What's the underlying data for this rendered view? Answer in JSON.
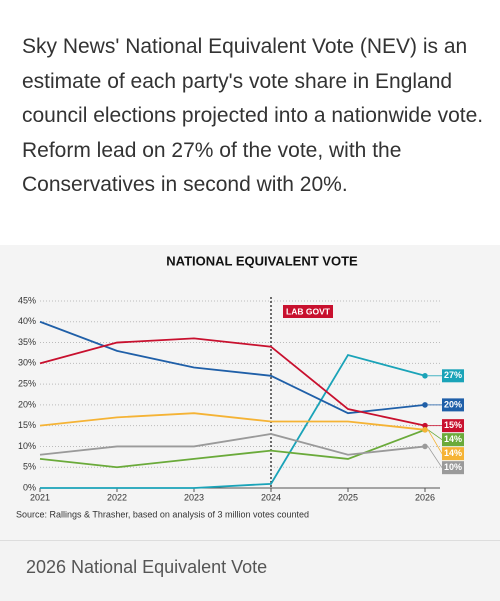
{
  "intro": "Sky News' National Equivalent Vote (NEV) is an estimate of each party's vote share in England council elections projected into a nationwide vote. Reform lead on 27% of the vote, with the Conservatives in second with 20%.",
  "chart_data": {
    "type": "line",
    "title": "NATIONAL EQUIVALENT VOTE",
    "x": [
      2021,
      2022,
      2023,
      2024,
      2025,
      2026
    ],
    "xlim": [
      2021,
      2026
    ],
    "xticks": [
      2021,
      2022,
      2023,
      2024,
      2025,
      2026
    ],
    "ylim": [
      0,
      45
    ],
    "yticks": [
      {
        "value": 0,
        "label": "0%"
      },
      {
        "value": 5,
        "label": "5%"
      },
      {
        "value": 10,
        "label": "10%"
      },
      {
        "value": 15,
        "label": "15%"
      },
      {
        "value": 20,
        "label": "20%"
      },
      {
        "value": 25,
        "label": "25%"
      },
      {
        "value": 30,
        "label": "30%"
      },
      {
        "value": 35,
        "label": "35%"
      },
      {
        "value": 40,
        "label": "40%"
      },
      {
        "value": 45,
        "label": "45%"
      }
    ],
    "grid": true,
    "annotation": {
      "x": 2024,
      "text": "LAB GOVT"
    },
    "series": [
      {
        "color": "#1aa3b8",
        "values": [
          0,
          0,
          0,
          1,
          32,
          27
        ],
        "value_labels": [
          null,
          null,
          null,
          null,
          null,
          "27%"
        ]
      },
      {
        "color": "#1f5fa8",
        "values": [
          40,
          33,
          29,
          27,
          18,
          20
        ],
        "value_labels": [
          null,
          null,
          null,
          null,
          null,
          "20%"
        ]
      },
      {
        "color": "#c8102e",
        "values": [
          30,
          35,
          36,
          34,
          19,
          15
        ],
        "value_labels": [
          null,
          null,
          null,
          null,
          null,
          "15%"
        ]
      },
      {
        "color": "#6aaa3a",
        "values": [
          7,
          5,
          7,
          9,
          7,
          14
        ],
        "value_labels": [
          null,
          null,
          null,
          null,
          null,
          "14%"
        ]
      },
      {
        "color": "#f5b335",
        "values": [
          15,
          17,
          18,
          16,
          16,
          14
        ],
        "value_labels": [
          null,
          null,
          null,
          null,
          null,
          "14%"
        ]
      },
      {
        "color": "#9a9a9a",
        "values": [
          8,
          10,
          10,
          13,
          8,
          10
        ],
        "value_labels": [
          null,
          null,
          null,
          null,
          null,
          "10%"
        ]
      }
    ],
    "source": "Source: Rallings & Thrasher, based on analysis of 3 million votes counted"
  },
  "caption": "2026 National Equivalent Vote"
}
